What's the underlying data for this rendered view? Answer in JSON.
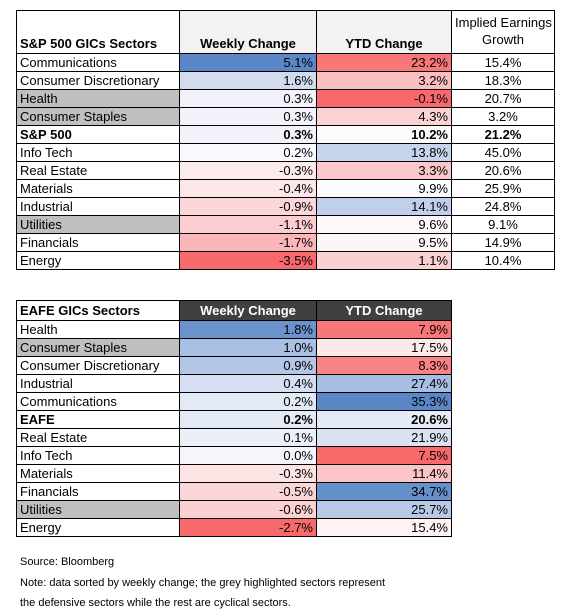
{
  "table1": {
    "headers": [
      "S&P 500 GICs Sectors",
      "Weekly Change",
      "YTD Change",
      "Implied Earnings",
      "Growth"
    ],
    "rows": [
      {
        "name": "Communications",
        "weekly": "5.1%",
        "ytd": "23.2%",
        "earn": "15.4%",
        "grey": false,
        "bold": false,
        "wc": "#5b87c7",
        "yc": "#f8787a"
      },
      {
        "name": "Consumer Discretionary",
        "weekly": "1.6%",
        "ytd": "3.2%",
        "earn": "18.3%",
        "grey": false,
        "bold": false,
        "wc": "#d3dcef",
        "yc": "#fabdc0"
      },
      {
        "name": "Health",
        "weekly": "0.3%",
        "ytd": "-0.1%",
        "earn": "20.7%",
        "grey": true,
        "bold": false,
        "wc": "#f1f2fa",
        "yc": "#f8696b"
      },
      {
        "name": "Consumer Staples",
        "weekly": "0.3%",
        "ytd": "4.3%",
        "earn": "3.2%",
        "grey": true,
        "bold": false,
        "wc": "#f1f2fa",
        "yc": "#fcd3d5"
      },
      {
        "name": "S&P 500",
        "weekly": "0.3%",
        "ytd": "10.2%",
        "earn": "21.2%",
        "grey": false,
        "bold": true,
        "wc": "#f1f2fa",
        "yc": "#fbfbfe"
      },
      {
        "name": "Info Tech",
        "weekly": "0.2%",
        "ytd": "13.8%",
        "earn": "45.0%",
        "grey": false,
        "bold": false,
        "wc": "#f9fafd",
        "yc": "#c6d4ec"
      },
      {
        "name": "Real Estate",
        "weekly": "-0.3%",
        "ytd": "3.3%",
        "earn": "20.6%",
        "grey": false,
        "bold": false,
        "wc": "#fcebec",
        "yc": "#fbc7ca"
      },
      {
        "name": "Materials",
        "weekly": "-0.4%",
        "ytd": "9.9%",
        "earn": "25.9%",
        "grey": false,
        "bold": false,
        "wc": "#fce6e7",
        "yc": "#fcfcfe"
      },
      {
        "name": "Industrial",
        "weekly": "-0.9%",
        "ytd": "14.1%",
        "earn": "24.8%",
        "grey": false,
        "bold": false,
        "wc": "#fbd5d7",
        "yc": "#c1d0ea"
      },
      {
        "name": "Utilities",
        "weekly": "-1.1%",
        "ytd": "9.6%",
        "earn": "9.1%",
        "grey": true,
        "bold": false,
        "wc": "#fbcdd0",
        "yc": "#fdf8f9"
      },
      {
        "name": "Financials",
        "weekly": "-1.7%",
        "ytd": "9.5%",
        "earn": "14.9%",
        "grey": false,
        "bold": false,
        "wc": "#fab6b9",
        "yc": "#fdf5f6"
      },
      {
        "name": "Energy",
        "weekly": "-3.5%",
        "ytd": "1.1%",
        "earn": "10.4%",
        "grey": false,
        "bold": false,
        "wc": "#f8696b",
        "yc": "#fad0d2"
      }
    ]
  },
  "table2": {
    "headers": [
      "EAFE GICs Sectors",
      "Weekly Change",
      "YTD Change"
    ],
    "rows": [
      {
        "name": "Health",
        "weekly": "1.8%",
        "ytd": "7.9%",
        "grey": false,
        "bold": false,
        "wc": "#6a93cd",
        "yc": "#f8787a"
      },
      {
        "name": "Consumer Staples",
        "weekly": "1.0%",
        "ytd": "17.5%",
        "grey": true,
        "bold": false,
        "wc": "#a9bfe3",
        "yc": "#fde9ea"
      },
      {
        "name": "Consumer Discretionary",
        "weekly": "0.9%",
        "ytd": "8.3%",
        "grey": false,
        "bold": false,
        "wc": "#b3c6e6",
        "yc": "#f98284"
      },
      {
        "name": "Industrial",
        "weekly": "0.4%",
        "ytd": "27.4%",
        "grey": false,
        "bold": false,
        "wc": "#d6dff1",
        "yc": "#a8bde2"
      },
      {
        "name": "Communications",
        "weekly": "0.2%",
        "ytd": "35.3%",
        "grey": false,
        "bold": false,
        "wc": "#e3eaf6",
        "yc": "#5b87c7"
      },
      {
        "name": "EAFE",
        "weekly": "0.2%",
        "ytd": "20.6%",
        "grey": false,
        "bold": true,
        "wc": "#e3eaf6",
        "yc": "#e4eaf6"
      },
      {
        "name": "Real Estate",
        "weekly": "0.1%",
        "ytd": "21.9%",
        "grey": false,
        "bold": false,
        "wc": "#eaeff8",
        "yc": "#dae2f2"
      },
      {
        "name": "Info Tech",
        "weekly": "0.0%",
        "ytd": "7.5%",
        "grey": false,
        "bold": false,
        "wc": "#f4f6fb",
        "yc": "#f8696b"
      },
      {
        "name": "Materials",
        "weekly": "-0.3%",
        "ytd": "11.4%",
        "grey": false,
        "bold": false,
        "wc": "#fce4e5",
        "yc": "#fbc5c7"
      },
      {
        "name": "Financials",
        "weekly": "-0.5%",
        "ytd": "34.7%",
        "grey": false,
        "bold": false,
        "wc": "#fbd6d8",
        "yc": "#6490cb"
      },
      {
        "name": "Utilities",
        "weekly": "-0.6%",
        "ytd": "25.7%",
        "grey": true,
        "bold": false,
        "wc": "#fbd0d2",
        "yc": "#b8c9e7"
      },
      {
        "name": "Energy",
        "weekly": "-2.7%",
        "ytd": "15.4%",
        "grey": false,
        "bold": false,
        "wc": "#f8696b",
        "yc": "#fef2f3"
      }
    ]
  },
  "notes": {
    "source": "Source: Bloomberg",
    "note1": "Note: data sorted by weekly change; the grey highlighted sectors represent",
    "note2": "the defensive sectors while the rest are cyclical sectors."
  }
}
